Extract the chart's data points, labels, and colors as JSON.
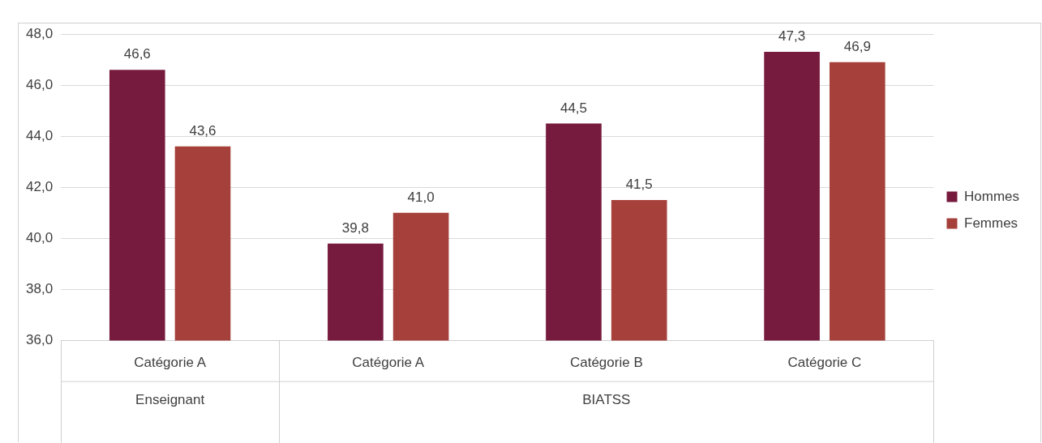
{
  "chart_data": {
    "type": "bar",
    "categories": [
      "Catégorie A",
      "Catégorie A",
      "Catégorie B",
      "Catégorie C"
    ],
    "series": [
      {
        "name": "Hommes",
        "color": "#771b3e",
        "values": [
          46.6,
          39.8,
          44.5,
          47.3
        ],
        "value_labels": [
          "46,6",
          "39,8",
          "44,5",
          "47,3"
        ]
      },
      {
        "name": "Femmes",
        "color": "#a5403a",
        "values": [
          43.6,
          41.0,
          41.5,
          46.9
        ],
        "value_labels": [
          "43,6",
          "41,0",
          "41,5",
          "46,9"
        ]
      }
    ],
    "ylim": [
      36,
      48
    ],
    "yticks": [
      {
        "value": 36,
        "label": "36,0"
      },
      {
        "value": 38,
        "label": "38,0"
      },
      {
        "value": 40,
        "label": "40,0"
      },
      {
        "value": 42,
        "label": "42,0"
      },
      {
        "value": 44,
        "label": "44,0"
      },
      {
        "value": 46,
        "label": "46,0"
      },
      {
        "value": 48,
        "label": "48,0"
      }
    ],
    "annotations": [
      "Enseignant",
      "BIATSS"
    ],
    "grid": "y",
    "legend": "right"
  }
}
